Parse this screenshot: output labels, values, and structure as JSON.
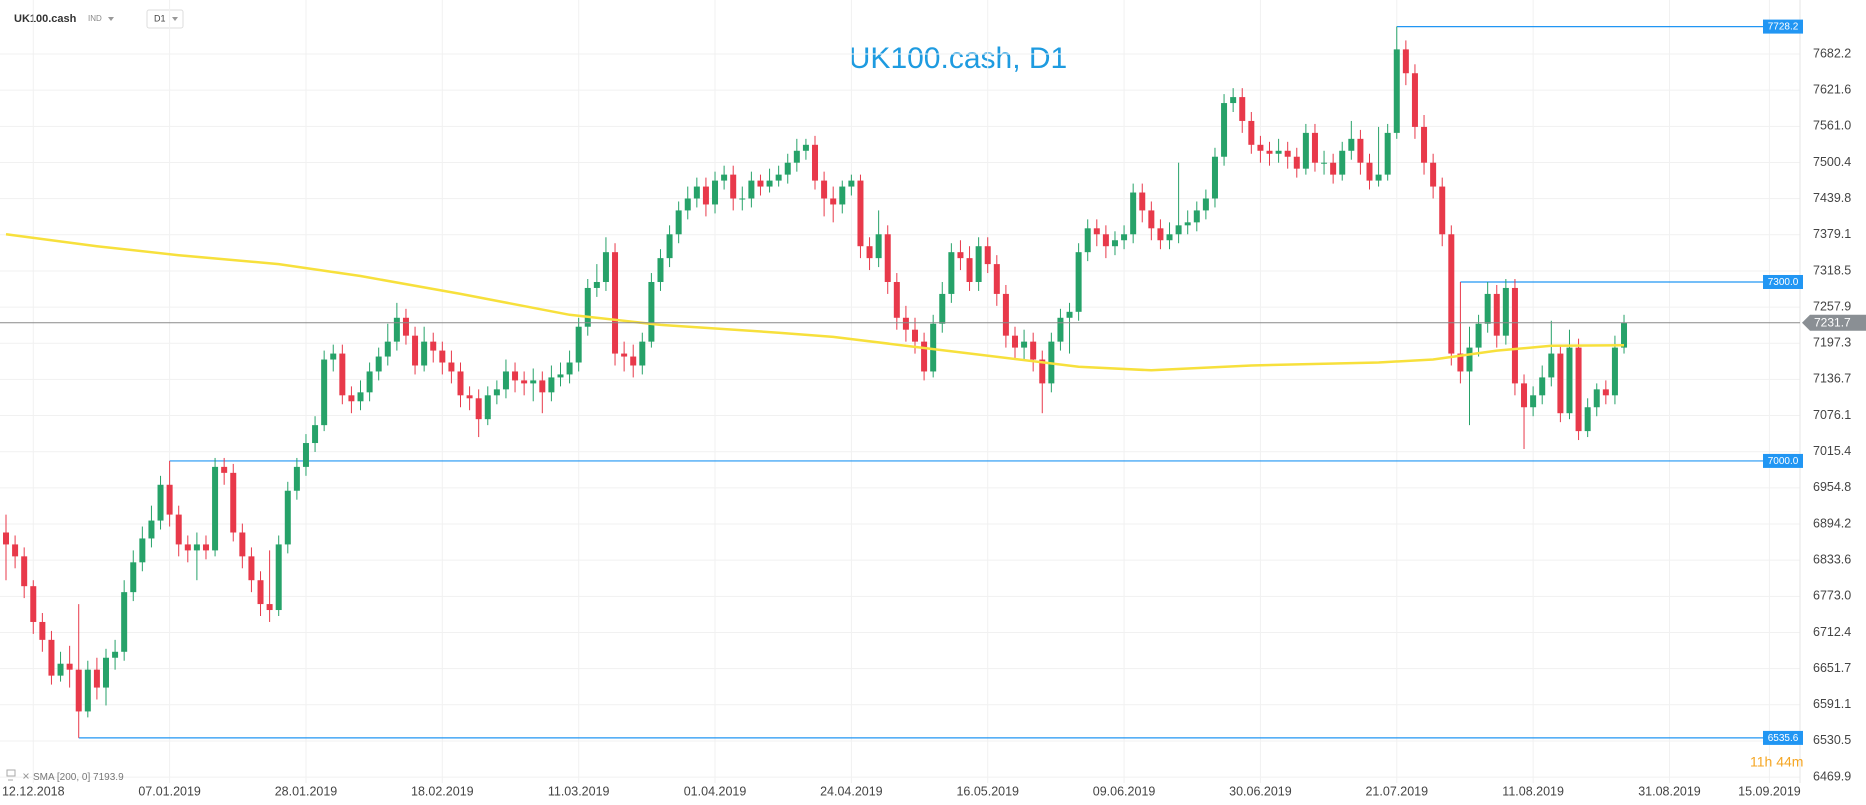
{
  "header": {
    "symbol": "UK100.cash",
    "market": "IND",
    "timeframe": "D1"
  },
  "chart_data": {
    "type": "candlestick",
    "title": "UK100.cash, D1",
    "up_color": "#26a269",
    "down_color": "#e8394a",
    "open": [
      6880,
      6860,
      6840,
      6790,
      6730,
      6700,
      6640,
      6660,
      6650,
      6580,
      6650,
      6620,
      6670,
      6680,
      6780,
      6830,
      6870,
      6900,
      6960,
      6910,
      6860,
      6850,
      6860,
      6850,
      6990,
      6980,
      6880,
      6840,
      6800,
      6760,
      6750,
      6860,
      6950,
      6990,
      7030,
      7060,
      7170,
      7180,
      7110,
      7100,
      7115,
      7150,
      7175,
      7200,
      7240,
      7210,
      7160,
      7200,
      7185,
      7165,
      7150,
      7110,
      7105,
      7070,
      7110,
      7120,
      7150,
      7135,
      7130,
      7135,
      7115,
      7140,
      7145,
      7165,
      7225,
      7290,
      7300,
      7350,
      7180,
      7175,
      7160,
      7200,
      7300,
      7340,
      7380,
      7420,
      7440,
      7460,
      7430,
      7470,
      7480,
      7440,
      7440,
      7470,
      7460,
      7470,
      7480,
      7500,
      7520,
      7530,
      7470,
      7440,
      7430,
      7460,
      7470,
      7360,
      7340,
      7380,
      7300,
      7240,
      7220,
      7200,
      7150,
      7230,
      7280,
      7350,
      7340,
      7300,
      7360,
      7330,
      7280,
      7210,
      7190,
      7200,
      7170,
      7130,
      7200,
      7240,
      7250,
      7350,
      7390,
      7380,
      7360,
      7370,
      7380,
      7450,
      7420,
      7390,
      7370,
      7380,
      7395,
      7400,
      7420,
      7440,
      7510,
      7600,
      7610,
      7570,
      7530,
      7520,
      7515,
      7520,
      7510,
      7490,
      7550,
      7500,
      7500,
      7480,
      7520,
      7540,
      7500,
      7470,
      7480,
      7550,
      7690,
      7650,
      7560,
      7500,
      7460,
      7380,
      7180,
      7150,
      7190,
      7230,
      7280,
      7210,
      7290,
      7130,
      7090,
      7110,
      7140,
      7180,
      7080,
      7190,
      7050,
      7090,
      7120,
      7110,
      7190
    ],
    "high": [
      6910,
      6875,
      6855,
      6800,
      6745,
      6715,
      6680,
      6690,
      6760,
      6665,
      6670,
      6685,
      6700,
      6800,
      6850,
      6890,
      6925,
      6975,
      7000,
      6925,
      6875,
      6880,
      6875,
      7005,
      7005,
      6995,
      6895,
      6855,
      6815,
      6850,
      6875,
      6965,
      7005,
      7045,
      7075,
      7185,
      7195,
      7195,
      7125,
      7135,
      7165,
      7190,
      7230,
      7265,
      7255,
      7225,
      7225,
      7215,
      7200,
      7185,
      7165,
      7125,
      7120,
      7125,
      7135,
      7170,
      7165,
      7150,
      7155,
      7150,
      7160,
      7165,
      7185,
      7240,
      7305,
      7330,
      7375,
      7365,
      7200,
      7195,
      7215,
      7315,
      7355,
      7395,
      7435,
      7460,
      7475,
      7475,
      7485,
      7495,
      7495,
      7460,
      7485,
      7480,
      7490,
      7495,
      7515,
      7540,
      7540,
      7545,
      7485,
      7460,
      7470,
      7480,
      7480,
      7375,
      7420,
      7395,
      7315,
      7260,
      7240,
      7215,
      7245,
      7300,
      7365,
      7370,
      7360,
      7375,
      7375,
      7345,
      7295,
      7225,
      7220,
      7215,
      7185,
      7215,
      7255,
      7265,
      7365,
      7405,
      7405,
      7395,
      7385,
      7395,
      7465,
      7465,
      7435,
      7405,
      7400,
      7500,
      7420,
      7435,
      7455,
      7525,
      7615,
      7625,
      7625,
      7585,
      7545,
      7535,
      7540,
      7535,
      7525,
      7565,
      7565,
      7520,
      7515,
      7535,
      7570,
      7555,
      7515,
      7560,
      7565,
      7728.2,
      7705,
      7665,
      7580,
      7515,
      7475,
      7395,
      7300,
      7225,
      7245,
      7300,
      7295,
      7305,
      7305,
      7145,
      7125,
      7160,
      7235,
      7195,
      7220,
      7205,
      7105,
      7130,
      7135,
      7210,
      7245
    ],
    "low": [
      6800,
      6820,
      6770,
      6710,
      6680,
      6625,
      6630,
      6620,
      6535.6,
      6570,
      6600,
      6590,
      6650,
      6665,
      6765,
      6815,
      6855,
      6885,
      6890,
      6840,
      6830,
      6800,
      6835,
      6840,
      6960,
      6865,
      6820,
      6780,
      6740,
      6730,
      6740,
      6845,
      6935,
      6975,
      7015,
      7050,
      7150,
      7095,
      7080,
      7085,
      7100,
      7135,
      7160,
      7185,
      7195,
      7145,
      7150,
      7165,
      7145,
      7130,
      7090,
      7085,
      7040,
      7060,
      7095,
      7105,
      7115,
      7110,
      7100,
      7080,
      7100,
      7125,
      7130,
      7150,
      7210,
      7275,
      7285,
      7160,
      7150,
      7140,
      7145,
      7190,
      7285,
      7325,
      7365,
      7405,
      7425,
      7410,
      7415,
      7455,
      7420,
      7420,
      7425,
      7445,
      7450,
      7460,
      7465,
      7485,
      7505,
      7455,
      7410,
      7400,
      7415,
      7445,
      7340,
      7320,
      7325,
      7280,
      7220,
      7200,
      7180,
      7135,
      7140,
      7215,
      7265,
      7320,
      7285,
      7285,
      7315,
      7260,
      7190,
      7170,
      7170,
      7150,
      7080,
      7115,
      7185,
      7180,
      7235,
      7335,
      7360,
      7340,
      7345,
      7355,
      7365,
      7400,
      7370,
      7355,
      7355,
      7365,
      7380,
      7385,
      7405,
      7425,
      7495,
      7585,
      7550,
      7515,
      7500,
      7495,
      7500,
      7490,
      7475,
      7480,
      7485,
      7480,
      7465,
      7470,
      7505,
      7480,
      7455,
      7460,
      7470,
      7540,
      7630,
      7540,
      7480,
      7440,
      7360,
      7160,
      7130,
      7060,
      7175,
      7215,
      7190,
      7195,
      7110,
      7020,
      7075,
      7095,
      7125,
      7065,
      7070,
      7035,
      7040,
      7075,
      7095,
      7095,
      7180
    ],
    "close": [
      6860,
      6840,
      6790,
      6730,
      6700,
      6640,
      6660,
      6650,
      6580,
      6650,
      6620,
      6670,
      6680,
      6780,
      6830,
      6870,
      6900,
      6960,
      6910,
      6860,
      6850,
      6860,
      6850,
      6990,
      6980,
      6880,
      6840,
      6800,
      6760,
      6750,
      6860,
      6950,
      6990,
      7030,
      7060,
      7170,
      7180,
      7110,
      7100,
      7115,
      7150,
      7175,
      7200,
      7240,
      7210,
      7160,
      7200,
      7185,
      7165,
      7150,
      7110,
      7105,
      7070,
      7110,
      7120,
      7150,
      7135,
      7130,
      7135,
      7115,
      7140,
      7145,
      7165,
      7225,
      7290,
      7300,
      7350,
      7180,
      7175,
      7160,
      7200,
      7300,
      7340,
      7380,
      7420,
      7440,
      7460,
      7430,
      7470,
      7480,
      7440,
      7440,
      7470,
      7460,
      7470,
      7480,
      7500,
      7520,
      7530,
      7470,
      7440,
      7430,
      7460,
      7470,
      7360,
      7340,
      7380,
      7300,
      7240,
      7220,
      7200,
      7150,
      7230,
      7280,
      7350,
      7340,
      7300,
      7360,
      7330,
      7280,
      7210,
      7190,
      7200,
      7170,
      7130,
      7200,
      7240,
      7250,
      7350,
      7390,
      7380,
      7360,
      7370,
      7380,
      7450,
      7420,
      7390,
      7370,
      7380,
      7395,
      7400,
      7420,
      7440,
      7510,
      7600,
      7610,
      7570,
      7530,
      7520,
      7515,
      7520,
      7510,
      7490,
      7550,
      7500,
      7500,
      7480,
      7520,
      7540,
      7500,
      7470,
      7480,
      7550,
      7690,
      7650,
      7560,
      7500,
      7460,
      7380,
      7180,
      7150,
      7190,
      7230,
      7280,
      7210,
      7290,
      7130,
      7090,
      7110,
      7140,
      7180,
      7080,
      7190,
      7050,
      7090,
      7120,
      7110,
      7190,
      7231.7
    ],
    "xticks": [
      {
        "value": 3,
        "label": "12.12.2018"
      },
      {
        "value": 18,
        "label": "07.01.2019"
      },
      {
        "value": 33,
        "label": "28.01.2019"
      },
      {
        "value": 48,
        "label": "18.02.2019"
      },
      {
        "value": 63,
        "label": "11.03.2019"
      },
      {
        "value": 78,
        "label": "01.04.2019"
      },
      {
        "value": 93,
        "label": "24.04.2019"
      },
      {
        "value": 108,
        "label": "16.05.2019"
      },
      {
        "value": 123,
        "label": "09.06.2019"
      },
      {
        "value": 138,
        "label": "30.06.2019"
      },
      {
        "value": 153,
        "label": "21.07.2019"
      },
      {
        "value": 168,
        "label": "11.08.2019"
      },
      {
        "value": 183,
        "label": "31.08.2019"
      },
      {
        "value": 194,
        "label": "15.09.2019"
      }
    ],
    "ylim": [
      6460,
      7752
    ],
    "yticks": [
      7682.2,
      7621.6,
      {
        "value": 7561,
        "label": "7561.0"
      },
      7500.4,
      7439.8,
      7379.1,
      7318.5,
      7257.9,
      7197.3,
      7136.7,
      7076.1,
      7015.4,
      6954.8,
      6894.2,
      6833.6,
      {
        "value": 6773,
        "label": "6773.0"
      },
      6712.4,
      6651.7,
      6591.1,
      6530.5,
      6469.9
    ],
    "grid": true,
    "indicator": {
      "name": "SMA [200, 0]",
      "color": "#f7e03c",
      "x": [
        0,
        10,
        19,
        30,
        39,
        50,
        62,
        72,
        85,
        91,
        105,
        118,
        126,
        137,
        151,
        157,
        164,
        170,
        178
      ],
      "values": [
        7380,
        7360,
        7345,
        7330,
        7310,
        7280,
        7245,
        7228,
        7215,
        7208,
        7182,
        7158,
        7152,
        7160,
        7165,
        7170,
        7185,
        7193,
        7193.9
      ]
    },
    "levels": [
      {
        "value": 7728.2,
        "start": 153
      },
      {
        "value": 7300,
        "label": "7300.0",
        "start": 160
      },
      {
        "value": 7000,
        "label": "7000.0",
        "start": 18
      },
      {
        "value": 6535.6,
        "start": 8
      }
    ],
    "level_color": "#2196f3",
    "countdown": "11h 44m"
  }
}
